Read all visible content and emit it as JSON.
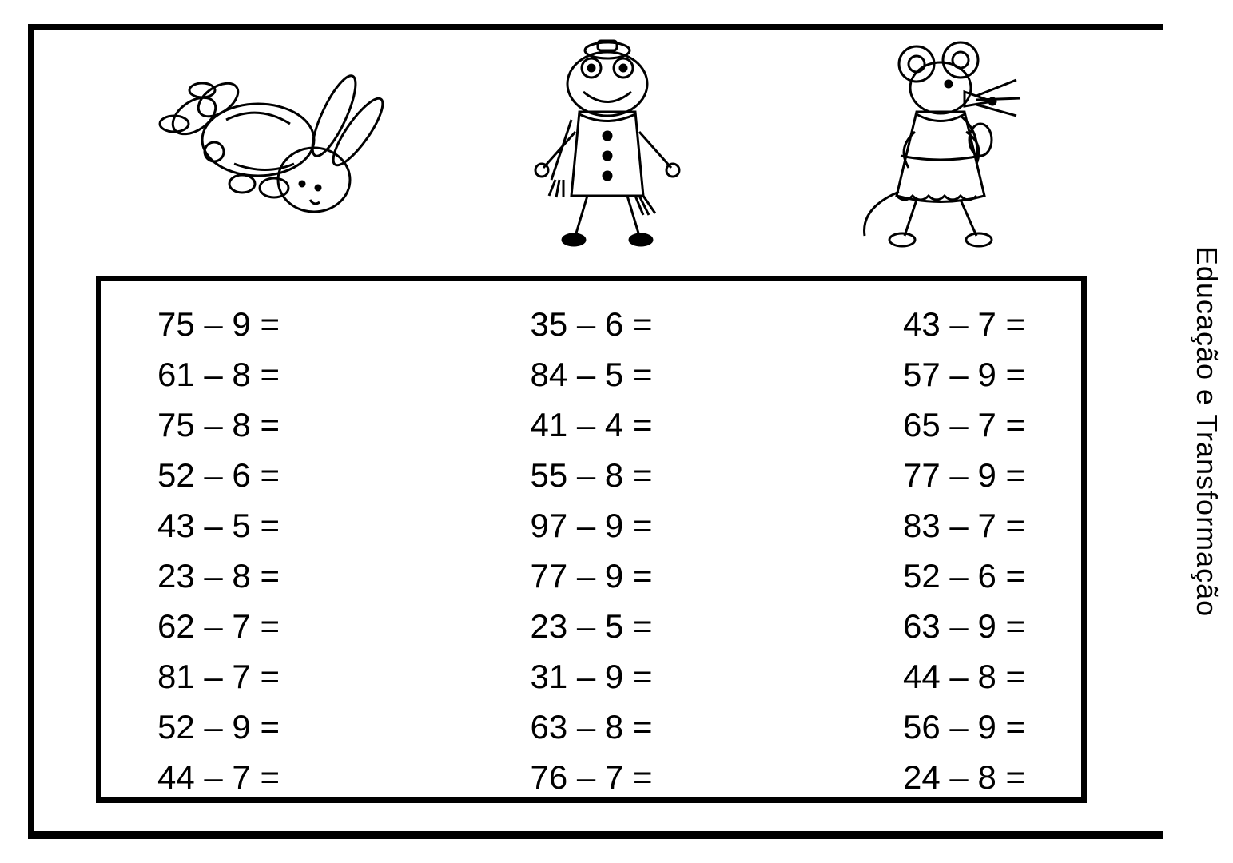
{
  "side_label": "Educação e Transformação",
  "columns": [
    {
      "items": [
        {
          "a": 75,
          "b": 9
        },
        {
          "a": 61,
          "b": 8
        },
        {
          "a": 75,
          "b": 8
        },
        {
          "a": 52,
          "b": 6
        },
        {
          "a": 43,
          "b": 5
        },
        {
          "a": 23,
          "b": 8
        },
        {
          "a": 62,
          "b": 7
        },
        {
          "a": 81,
          "b": 7
        },
        {
          "a": 52,
          "b": 9
        },
        {
          "a": 44,
          "b": 7
        }
      ]
    },
    {
      "items": [
        {
          "a": 35,
          "b": 6
        },
        {
          "a": 84,
          "b": 5
        },
        {
          "a": 41,
          "b": 4
        },
        {
          "a": 55,
          "b": 8
        },
        {
          "a": 97,
          "b": 9
        },
        {
          "a": 77,
          "b": 9
        },
        {
          "a": 23,
          "b": 5
        },
        {
          "a": 31,
          "b": 9
        },
        {
          "a": 63,
          "b": 8
        },
        {
          "a": 76,
          "b": 7
        }
      ]
    },
    {
      "items": [
        {
          "a": 43,
          "b": 7
        },
        {
          "a": 57,
          "b": 9
        },
        {
          "a": 65,
          "b": 7
        },
        {
          "a": 77,
          "b": 9
        },
        {
          "a": 83,
          "b": 7
        },
        {
          "a": 52,
          "b": 6
        },
        {
          "a": 63,
          "b": 9
        },
        {
          "a": 44,
          "b": 8
        },
        {
          "a": 56,
          "b": 9
        },
        {
          "a": 24,
          "b": 8
        }
      ]
    }
  ],
  "characters": [
    {
      "name": "rabbit-jumping"
    },
    {
      "name": "frog-winter"
    },
    {
      "name": "mouse-walking"
    }
  ],
  "style": {
    "font_size_problems": 42,
    "font_size_side": 36,
    "border_color": "#000000",
    "background_color": "#ffffff",
    "text_color": "#000000"
  }
}
